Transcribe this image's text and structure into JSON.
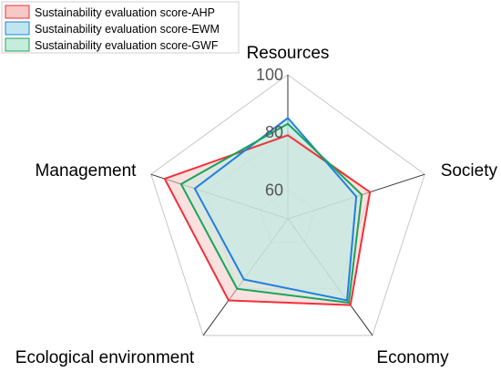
{
  "chart_data": {
    "type": "radar",
    "axes": [
      "Resources",
      "Society",
      "Economy",
      "Ecological environment",
      "Management"
    ],
    "rlim": [
      50,
      100
    ],
    "tick_labels": [
      "60",
      "80",
      "100"
    ],
    "grid_levels": [
      60,
      80,
      100
    ],
    "grid": true,
    "legend_position": "top-left",
    "series": [
      {
        "name": "Sustainability evaluation score-AHP",
        "values": [
          79,
          80,
          87,
          85,
          95
        ],
        "color": "#f0303a",
        "fill": "#f6c8c6"
      },
      {
        "name": "Sustainability evaluation score-EWM",
        "values": [
          85,
          75,
          85,
          76,
          84
        ],
        "color": "#1f7fe0",
        "fill": "#bfe6ee"
      },
      {
        "name": "Sustainability evaluation score-GWF",
        "values": [
          83,
          77,
          86,
          80,
          89
        ],
        "color": "#1aa35a",
        "fill": "#c6ecdc"
      }
    ]
  }
}
